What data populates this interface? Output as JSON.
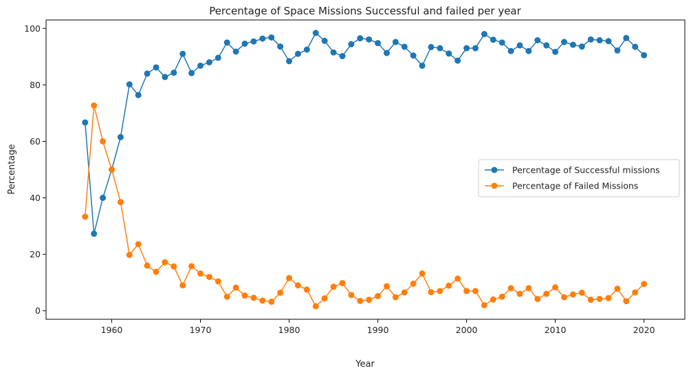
{
  "chart_data": {
    "type": "line",
    "title": "Percentage of Space Missions Successful and failed per year",
    "xlabel": "Year",
    "ylabel": "Percentage",
    "xlim": [
      1952.6,
      2024.6
    ],
    "ylim": [
      -3,
      103
    ],
    "xticks": [
      "1960",
      "1970",
      "1980",
      "1990",
      "2000",
      "2010",
      "2020"
    ],
    "yticks": [
      "0",
      "20",
      "40",
      "60",
      "80",
      "100"
    ],
    "grid": false,
    "legend_position": "center-right",
    "x": [
      1957,
      1958,
      1959,
      1960,
      1961,
      1962,
      1963,
      1964,
      1965,
      1966,
      1967,
      1968,
      1969,
      1970,
      1971,
      1972,
      1973,
      1974,
      1975,
      1976,
      1977,
      1978,
      1979,
      1980,
      1981,
      1982,
      1983,
      1984,
      1985,
      1986,
      1987,
      1988,
      1989,
      1990,
      1991,
      1992,
      1993,
      1994,
      1995,
      1996,
      1997,
      1998,
      1999,
      2000,
      2001,
      2002,
      2003,
      2004,
      2005,
      2006,
      2007,
      2008,
      2009,
      2010,
      2011,
      2012,
      2013,
      2014,
      2015,
      2016,
      2017,
      2018,
      2019,
      2020
    ],
    "series": [
      {
        "name": "Percentage of Successful missions",
        "color": "#1f77b4",
        "values": [
          66.7,
          27.3,
          40.0,
          50.0,
          61.5,
          80.2,
          76.4,
          84.0,
          86.2,
          82.8,
          84.3,
          91.0,
          84.2,
          86.8,
          88.0,
          89.6,
          95.0,
          91.8,
          94.6,
          95.4,
          96.4,
          96.8,
          93.6,
          88.4,
          91.0,
          92.5,
          98.4,
          95.6,
          91.5,
          90.2,
          94.4,
          96.5,
          96.1,
          94.8,
          91.3,
          95.2,
          93.5,
          90.4,
          86.8,
          93.4,
          93.0,
          91.1,
          88.6,
          93.0,
          93.0,
          98.0,
          96.0,
          95.0,
          92.0,
          94.0,
          92.0,
          95.8,
          94.0,
          91.7,
          95.2,
          94.2,
          93.6,
          96.1,
          95.8,
          95.5,
          92.2,
          96.6,
          93.5,
          90.5
        ]
      },
      {
        "name": "Percentage of Failed Missions",
        "color": "#ff7f0e",
        "values": [
          33.3,
          72.7,
          60.0,
          50.0,
          38.5,
          19.8,
          23.6,
          16.0,
          13.8,
          17.2,
          15.7,
          9.0,
          15.8,
          13.2,
          12.0,
          10.4,
          5.0,
          8.2,
          5.4,
          4.6,
          3.6,
          3.2,
          6.4,
          11.6,
          9.0,
          7.5,
          1.6,
          4.4,
          8.5,
          9.8,
          5.6,
          3.5,
          3.9,
          5.2,
          8.7,
          4.8,
          6.5,
          9.6,
          13.2,
          6.6,
          7.0,
          8.9,
          11.4,
          7.0,
          7.0,
          2.0,
          4.0,
          5.0,
          8.0,
          6.0,
          8.0,
          4.2,
          6.0,
          8.3,
          4.8,
          5.8,
          6.4,
          3.9,
          4.2,
          4.5,
          7.8,
          3.4,
          6.5,
          9.5
        ]
      }
    ]
  }
}
